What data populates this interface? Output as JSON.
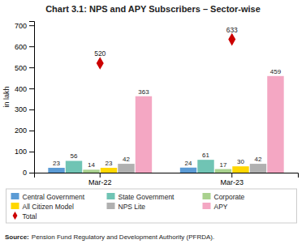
{
  "chart_data": {
    "type": "bar",
    "title": "Chart 3.1: NPS and APY Subscribers – Sector-wise",
    "ylabel": "in lakh",
    "categories": [
      "Mar-22",
      "Mar-23"
    ],
    "series": [
      {
        "name": "Central Government",
        "color": "#5b9bd5",
        "values": [
          23,
          24
        ]
      },
      {
        "name": "State Government",
        "color": "#70c4b4",
        "values": [
          56,
          61
        ]
      },
      {
        "name": "Corporate",
        "color": "#a9d18e",
        "values": [
          14,
          17
        ]
      },
      {
        "name": "All Citizen Model",
        "color": "#ffd700",
        "values": [
          23,
          30
        ]
      },
      {
        "name": "NPS Lite",
        "color": "#b0b0b0",
        "values": [
          42,
          42
        ]
      },
      {
        "name": "APY",
        "color": "#f4a7c3",
        "values": [
          363,
          459
        ]
      },
      {
        "name": "Total",
        "type": "scatter",
        "marker": "diamond",
        "color": "#cc0000",
        "values": [
          520,
          633
        ]
      }
    ],
    "ylim": [
      0,
      720
    ],
    "yticks": [
      0,
      100,
      200,
      300,
      400,
      500,
      600,
      700
    ],
    "grid": false,
    "data_labels": true,
    "legend": "bottom",
    "annotations": [
      "Source:",
      "Pension Fund Regulatory and Development Authority (PFRDA)."
    ]
  }
}
